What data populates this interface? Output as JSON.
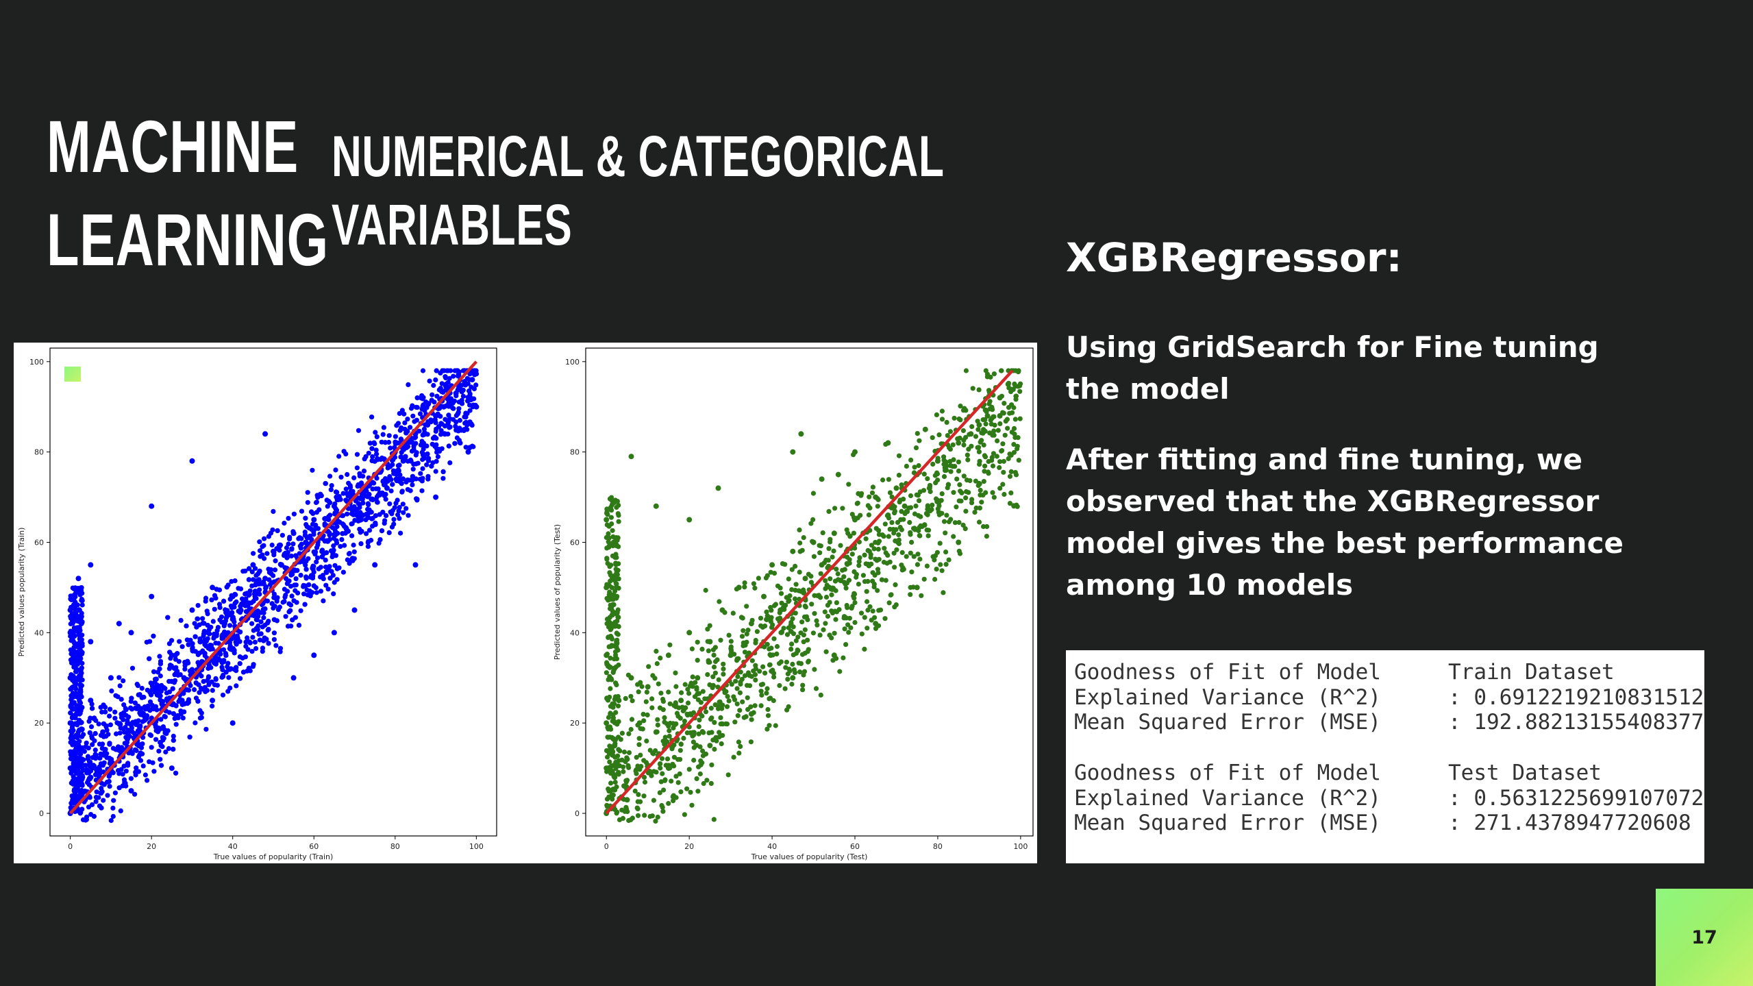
{
  "slide": {
    "title_lines": [
      "MACHINE",
      "LEARNING"
    ],
    "subtitle_lines": [
      "NUMERICAL & CATEGORICAL",
      "VARIABLES"
    ],
    "model_heading": "XGBRegressor:",
    "paragraph1": "Using GridSearch for Fine tuning the model",
    "paragraph2": "After fitting and fine tuning, we observed that the XGBRegressor model gives the best performance among 10 models",
    "page_number": "17",
    "colors": {
      "background": "#1f2020",
      "text": "#ffffff",
      "train_points": "#0000ff",
      "test_points": "#2f7a17",
      "ideal_line": "#d62728",
      "badge_gradient": [
        "#8ef77e",
        "#c7f36a"
      ]
    }
  },
  "metrics": {
    "train": {
      "header_label": "Goodness of Fit of Model",
      "header_value": "Train Dataset",
      "r2_label": "Explained Variance (R^2)",
      "r2_value": ": 0.6912219210831512",
      "mse_label": "Mean Squared Error (MSE)",
      "mse_value": ": 192.88213155408377"
    },
    "test": {
      "header_label": "Goodness of Fit of Model",
      "header_value": "Test Dataset",
      "r2_label": "Explained Variance (R^2)",
      "r2_value": ": 0.5631225699107072",
      "mse_label": "Mean Squared Error (MSE)",
      "mse_value": ": 271.4378947720608"
    }
  },
  "chart_data": [
    {
      "type": "scatter",
      "xlabel": "True values of popularity (Train)",
      "ylabel": "Predicted values popularity (Train)",
      "xlim": [
        -5,
        105
      ],
      "ylim": [
        -5,
        103
      ],
      "xticks": [
        0,
        20,
        40,
        60,
        80,
        100
      ],
      "yticks": [
        0,
        20,
        40,
        60,
        80,
        100
      ],
      "grid": false,
      "point_color": "#0000ff",
      "reference_line": {
        "from": [
          0,
          0
        ],
        "to": [
          100,
          100
        ],
        "color": "#d62728"
      },
      "series": [
        {
          "x": [
            0,
            0,
            0,
            0,
            0,
            0,
            1,
            2,
            2,
            3,
            5,
            5,
            8,
            10,
            12,
            15,
            18,
            20,
            22,
            25,
            28,
            30,
            32,
            35,
            38,
            40,
            42,
            45,
            48,
            50,
            52,
            55,
            58,
            60,
            62,
            65,
            68,
            70,
            72,
            75,
            78,
            80,
            82,
            85,
            88,
            90,
            92,
            95,
            97,
            99,
            100,
            30,
            48,
            20,
            2,
            10,
            15,
            35,
            60,
            70,
            85,
            5,
            12,
            25,
            40,
            55,
            65,
            75,
            90,
            98
          ],
          "y": [
            0,
            10,
            20,
            30,
            40,
            45,
            5,
            15,
            35,
            8,
            25,
            55,
            18,
            30,
            14,
            40,
            22,
            48,
            26,
            35,
            30,
            45,
            38,
            50,
            42,
            48,
            45,
            55,
            52,
            58,
            55,
            62,
            60,
            65,
            58,
            68,
            63,
            70,
            66,
            75,
            72,
            80,
            78,
            84,
            86,
            88,
            90,
            93,
            95,
            96,
            90,
            78,
            84,
            68,
            52,
            10,
            5,
            25,
            35,
            45,
            55,
            38,
            42,
            10,
            20,
            30,
            40,
            55,
            70,
            80
          ]
        }
      ]
    },
    {
      "type": "scatter",
      "xlabel": "True values of popularity (Test)",
      "ylabel": "Predicted values of popularity (Test)",
      "xlim": [
        -5,
        103
      ],
      "ylim": [
        -5,
        103
      ],
      "xticks": [
        0,
        20,
        40,
        60,
        80,
        100
      ],
      "yticks": [
        0,
        20,
        40,
        60,
        80,
        100
      ],
      "grid": false,
      "point_color": "#2f7a17",
      "reference_line": {
        "from": [
          0,
          0
        ],
        "to": [
          98,
          98
        ],
        "color": "#d62728"
      },
      "series": [
        {
          "x": [
            0,
            0,
            0,
            0,
            0,
            0,
            1,
            2,
            3,
            5,
            6,
            8,
            10,
            12,
            15,
            18,
            20,
            22,
            25,
            28,
            30,
            32,
            35,
            38,
            40,
            42,
            45,
            48,
            50,
            52,
            55,
            58,
            60,
            62,
            65,
            68,
            70,
            72,
            75,
            78,
            80,
            82,
            85,
            88,
            90,
            92,
            95,
            97,
            6,
            12,
            20,
            27,
            45,
            47,
            52,
            56,
            60,
            68,
            77,
            2,
            5,
            15,
            25,
            35,
            45,
            55,
            65,
            75,
            85,
            95
          ],
          "y": [
            0,
            10,
            20,
            35,
            50,
            65,
            5,
            15,
            25,
            12,
            30,
            20,
            28,
            18,
            35,
            25,
            40,
            30,
            38,
            45,
            35,
            50,
            42,
            48,
            55,
            45,
            58,
            52,
            60,
            55,
            62,
            58,
            65,
            62,
            70,
            66,
            72,
            68,
            75,
            72,
            78,
            76,
            82,
            84,
            86,
            88,
            92,
            95,
            79,
            68,
            65,
            72,
            80,
            84,
            74,
            75,
            80,
            82,
            85,
            8,
            3,
            10,
            15,
            22,
            30,
            35,
            42,
            50,
            60,
            88
          ]
        }
      ]
    }
  ]
}
